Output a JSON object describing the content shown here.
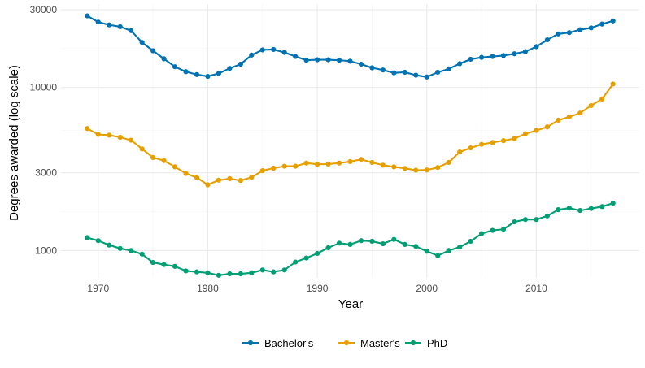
{
  "chart_data": {
    "type": "line",
    "xlabel": "Year",
    "ylabel": "Degrees awarded (log scale)",
    "yscale": "log",
    "xlim": [
      1966.6,
      2019.4
    ],
    "ylim": [
      680,
      32500
    ],
    "xticks": [
      1970,
      1980,
      1990,
      2000,
      2010
    ],
    "xtick_labels": [
      "1970",
      "1980",
      "1990",
      "2000",
      "2010"
    ],
    "yticks": [
      1000,
      3000,
      10000,
      30000
    ],
    "ytick_labels": [
      "1000",
      "3000",
      "10000",
      "30000"
    ],
    "x_minor_ticks": [
      1975,
      1985,
      1995,
      2005,
      2015
    ],
    "y_minor_ticks": [
      1732,
      5477,
      17321
    ],
    "grid": true,
    "legend_position": "bottom",
    "x": [
      1969,
      1970,
      1971,
      1972,
      1973,
      1974,
      1975,
      1976,
      1977,
      1978,
      1979,
      1980,
      1981,
      1982,
      1983,
      1984,
      1985,
      1986,
      1987,
      1988,
      1989,
      1990,
      1991,
      1992,
      1993,
      1994,
      1995,
      1996,
      1997,
      1998,
      1999,
      2000,
      2001,
      2002,
      2003,
      2004,
      2005,
      2006,
      2007,
      2008,
      2009,
      2010,
      2011,
      2012,
      2013,
      2014,
      2015,
      2016,
      2017
    ],
    "series": [
      {
        "name": "Bachelor's",
        "color": "#0072B2",
        "values": [
          27500,
          25200,
          24200,
          23600,
          22300,
          18900,
          16800,
          15000,
          13400,
          12500,
          12000,
          11700,
          12200,
          13100,
          13900,
          15800,
          17000,
          17100,
          16400,
          15500,
          14700,
          14800,
          14800,
          14700,
          14500,
          13900,
          13200,
          12800,
          12300,
          12400,
          11900,
          11600,
          12400,
          13000,
          14000,
          14900,
          15300,
          15500,
          15700,
          16100,
          16600,
          17800,
          19600,
          21300,
          21700,
          22600,
          23200,
          24500,
          25600
        ]
      },
      {
        "name": "Master's",
        "color": "#E69F00",
        "values": [
          5600,
          5150,
          5100,
          4950,
          4750,
          4200,
          3720,
          3560,
          3260,
          2970,
          2800,
          2530,
          2700,
          2760,
          2690,
          2810,
          3090,
          3200,
          3290,
          3290,
          3440,
          3380,
          3390,
          3440,
          3510,
          3620,
          3470,
          3340,
          3260,
          3190,
          3110,
          3120,
          3230,
          3470,
          4020,
          4260,
          4480,
          4600,
          4720,
          4860,
          5200,
          5450,
          5730,
          6300,
          6600,
          6970,
          7750,
          8500,
          10500
        ]
      },
      {
        "name": "PhD",
        "color": "#009E73",
        "values": [
          1200,
          1150,
          1080,
          1030,
          1000,
          950,
          845,
          820,
          800,
          750,
          740,
          730,
          705,
          720,
          720,
          730,
          760,
          740,
          760,
          850,
          900,
          960,
          1040,
          1110,
          1090,
          1150,
          1140,
          1100,
          1170,
          1090,
          1060,
          990,
          930,
          1000,
          1050,
          1140,
          1270,
          1330,
          1350,
          1500,
          1550,
          1550,
          1630,
          1780,
          1820,
          1760,
          1810,
          1860,
          1950
        ]
      }
    ]
  }
}
